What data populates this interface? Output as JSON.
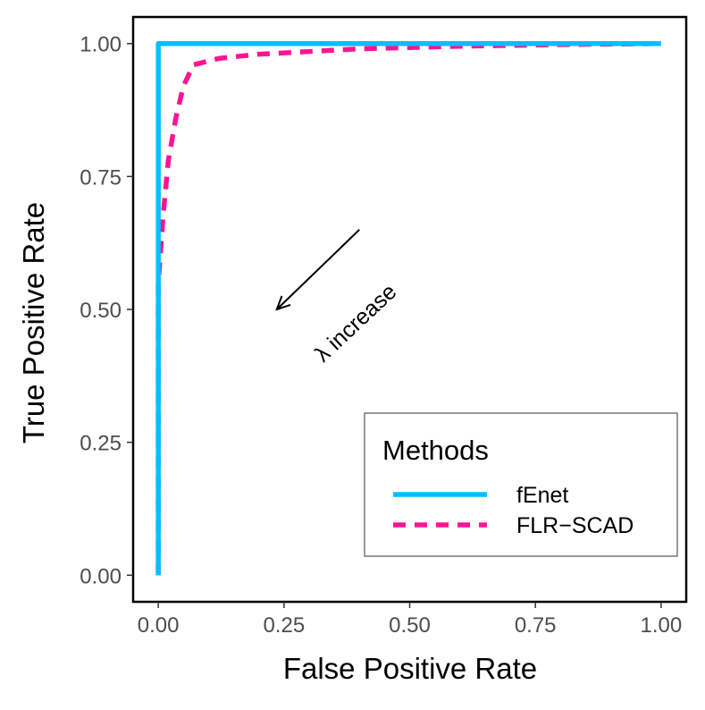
{
  "chart_data": {
    "type": "line",
    "xlabel": "False Positive Rate",
    "ylabel": "True Positive Rate",
    "xlim": [
      -0.05,
      1.05
    ],
    "ylim": [
      -0.05,
      1.05
    ],
    "x_ticks": [
      0.0,
      0.25,
      0.5,
      0.75,
      1.0
    ],
    "y_ticks": [
      0.0,
      0.25,
      0.5,
      0.75,
      1.0
    ],
    "x_tick_labels": [
      "0.00",
      "0.25",
      "0.50",
      "0.75",
      "1.00"
    ],
    "y_tick_labels": [
      "0.00",
      "0.25",
      "0.50",
      "0.75",
      "1.00"
    ],
    "grid": false,
    "legend": {
      "title": "Methods",
      "placement": "bottom-right"
    },
    "series": [
      {
        "name": "fEnet",
        "color": "#00BFFF",
        "dash": "solid",
        "points": [
          [
            0.0,
            0.0
          ],
          [
            0.0,
            1.0
          ],
          [
            1.0,
            1.0
          ]
        ]
      },
      {
        "name": "FLR−SCAD",
        "color": "#FF1493",
        "dash": "dashed",
        "points": [
          [
            0.0,
            0.0
          ],
          [
            0.0,
            0.55
          ],
          [
            0.01,
            0.68
          ],
          [
            0.02,
            0.78
          ],
          [
            0.035,
            0.86
          ],
          [
            0.05,
            0.92
          ],
          [
            0.07,
            0.96
          ],
          [
            0.12,
            0.972
          ],
          [
            0.2,
            0.98
          ],
          [
            0.4,
            0.99
          ],
          [
            0.6,
            0.995
          ],
          [
            0.8,
            0.998
          ],
          [
            1.0,
            1.0
          ]
        ]
      }
    ],
    "annotations": [
      {
        "text": "λ increase",
        "arrow": {
          "from": [
            0.4,
            0.65
          ],
          "to": [
            0.25,
            0.5
          ]
        }
      }
    ]
  }
}
